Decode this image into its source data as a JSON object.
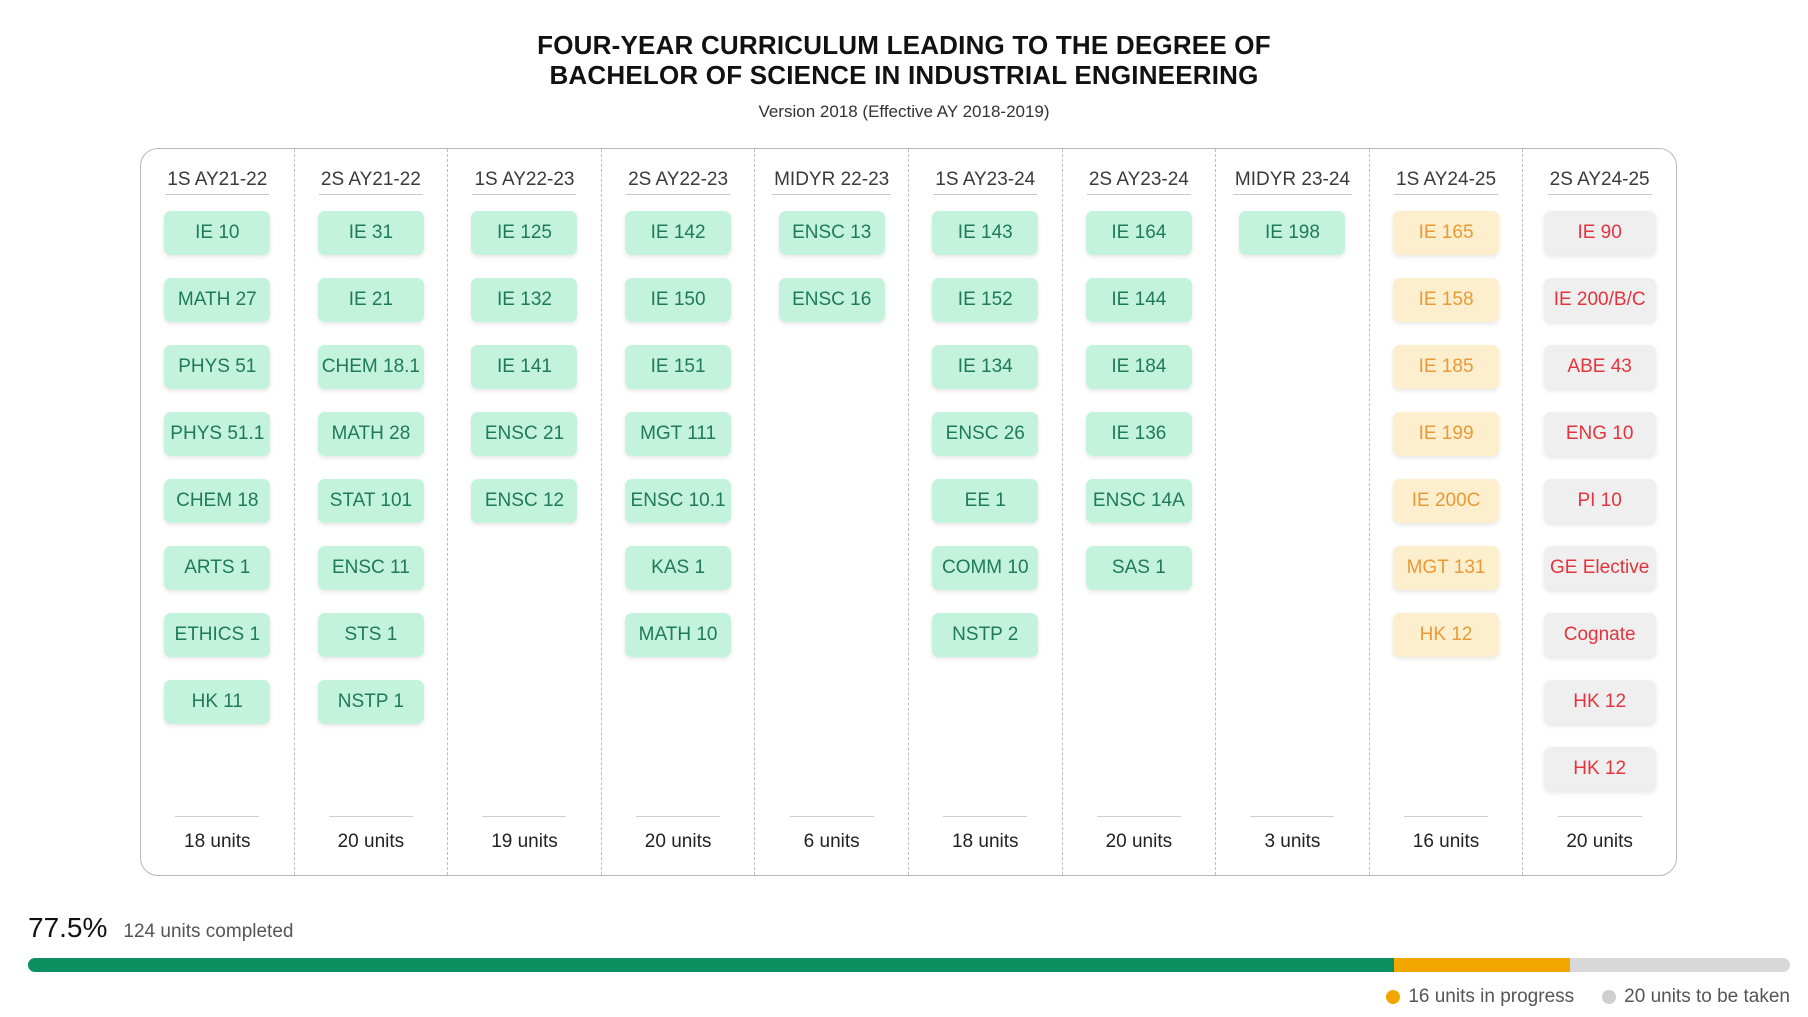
{
  "title": {
    "line1": "FOUR-YEAR CURRICULUM LEADING TO THE DEGREE OF",
    "line2": "BACHELOR OF SCIENCE IN INDUSTRIAL ENGINEERING",
    "version": "Version 2018 (Effective AY 2018-2019)"
  },
  "colors": {
    "done_bg": "#c3f3dc",
    "done_text": "#1f7a5a",
    "inprog_bg": "#fdeecd",
    "inprog_text": "#e89a36",
    "todo_bg": "#efefef",
    "todo_text": "#e3343d",
    "bar_done": "#0e8f62",
    "bar_prog": "#f2a600",
    "bar_todo": "#d8d8d8"
  },
  "terms": [
    {
      "label": "1S AY21-22",
      "units": "18 units",
      "status": "done",
      "courses": [
        "IE 10",
        "MATH 27",
        "PHYS 51",
        "PHYS 51.1",
        "CHEM 18",
        "ARTS 1",
        "ETHICS 1",
        "HK 11"
      ]
    },
    {
      "label": "2S AY21-22",
      "units": "20 units",
      "status": "done",
      "courses": [
        "IE 31",
        "IE 21",
        "CHEM 18.1",
        "MATH 28",
        "STAT 101",
        "ENSC 11",
        "STS 1",
        "NSTP 1"
      ]
    },
    {
      "label": "1S AY22-23",
      "units": "19 units",
      "status": "done",
      "courses": [
        "IE 125",
        "IE 132",
        "IE 141",
        "ENSC 21",
        "ENSC 12"
      ]
    },
    {
      "label": "2S AY22-23",
      "units": "20 units",
      "status": "done",
      "courses": [
        "IE 142",
        "IE 150",
        "IE 151",
        "MGT 111",
        "ENSC 10.1",
        "KAS 1",
        "MATH 10"
      ]
    },
    {
      "label": "MIDYR 22-23",
      "units": "6 units",
      "status": "done",
      "courses": [
        "ENSC 13",
        "ENSC 16"
      ]
    },
    {
      "label": "1S AY23-24",
      "units": "18 units",
      "status": "done",
      "courses": [
        "IE 143",
        "IE 152",
        "IE 134",
        "ENSC 26",
        "EE 1",
        "COMM 10",
        "NSTP 2"
      ]
    },
    {
      "label": "2S AY23-24",
      "units": "20 units",
      "status": "done",
      "courses": [
        "IE 164",
        "IE 144",
        "IE 184",
        "IE 136",
        "ENSC 14A",
        "SAS 1"
      ]
    },
    {
      "label": "MIDYR 23-24",
      "units": "3 units",
      "status": "done",
      "courses": [
        "IE 198"
      ]
    },
    {
      "label": "1S AY24-25",
      "units": "16 units",
      "status": "inprog",
      "courses": [
        "IE 165",
        "IE 158",
        "IE 185",
        "IE 199",
        "IE 200C",
        "MGT 131",
        "HK 12"
      ]
    },
    {
      "label": "2S AY24-25",
      "units": "20 units",
      "status": "todo",
      "courses": [
        "IE 90",
        "IE 200/B/C",
        "ABE 43",
        "ENG 10",
        "PI 10",
        "GE Elective",
        "Cognate",
        "HK 12",
        "HK 12"
      ]
    }
  ],
  "progress": {
    "percent": "77.5%",
    "completed_text": "124 units completed",
    "completed_units": 124,
    "in_progress_units": 16,
    "to_take_units": 20,
    "in_progress_text": "16 units in progress",
    "to_take_text": "20 units to be taken"
  }
}
